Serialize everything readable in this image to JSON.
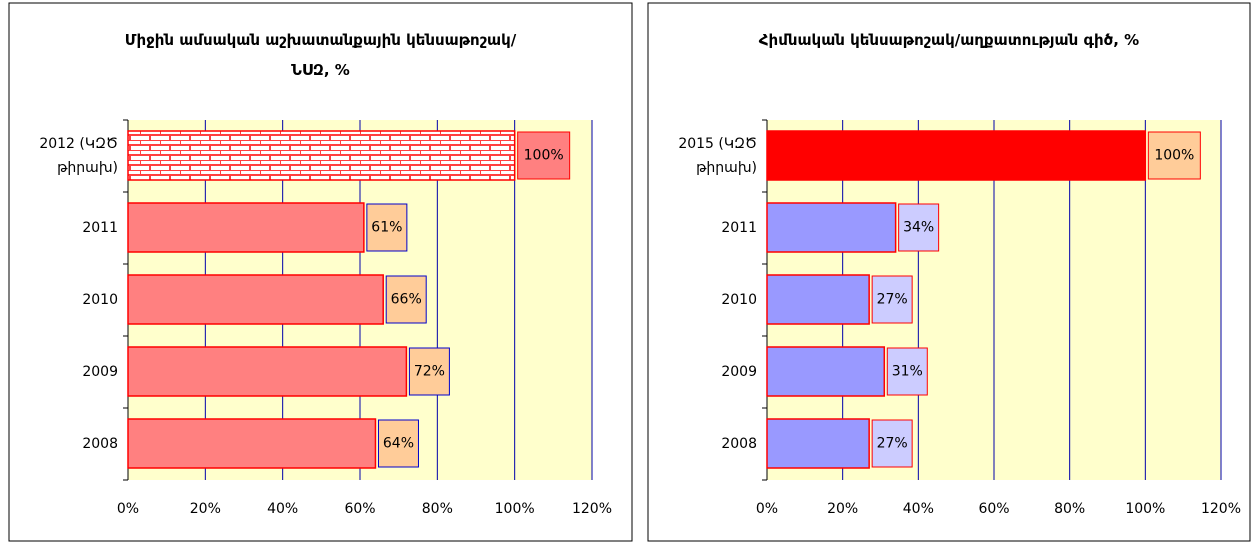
{
  "chart_data": [
    {
      "type": "bar",
      "orientation": "horizontal",
      "title": "Միջին ամսական աշխատանքային կենսաթոշակ/ՆՍԶ, %",
      "categories": [
        "2012 (ԿԶԾ թիրախ)",
        "2011",
        "2010",
        "2009",
        "2008"
      ],
      "values": [
        100,
        61,
        66,
        72,
        64
      ],
      "value_labels": [
        "100%",
        "61%",
        "66%",
        "72%",
        "64%"
      ],
      "colors": [
        "#ff8080",
        "#ff8080",
        "#ff8080",
        "#ff8080",
        "#ff8080"
      ],
      "bar_fill_patterns": [
        "bricks",
        "none",
        "none",
        "none",
        "none"
      ],
      "label_colors": [
        "#ff8080",
        "#ffcc99",
        "#ffcc99",
        "#ffcc99",
        "#ffcc99"
      ],
      "label_border_colors": [
        "#ff0000",
        "#0000cc",
        "#0000cc",
        "#0000cc",
        "#0000cc"
      ],
      "xlim": [
        0,
        120
      ],
      "xticks": [
        {
          "value": 0,
          "label": "0%"
        },
        {
          "value": 20,
          "label": "20%"
        },
        {
          "value": 40,
          "label": "40%"
        },
        {
          "value": 60,
          "label": "60%"
        },
        {
          "value": 80,
          "label": "80%"
        },
        {
          "value": 100,
          "label": "100%"
        },
        {
          "value": 120,
          "label": "120%"
        }
      ],
      "grid": true
    },
    {
      "type": "bar",
      "orientation": "horizontal",
      "title": "Հիմնական կենսաթոշակ/աղքատության գիծ, %",
      "categories": [
        "2015 (ԿԶԾ թիրախ)",
        "2011",
        "2010",
        "2009",
        "2008"
      ],
      "values": [
        100,
        34,
        27,
        31,
        27
      ],
      "value_labels": [
        "100%",
        "34%",
        "27%",
        "31%",
        "27%"
      ],
      "colors": [
        "#ff0000",
        "#9999ff",
        "#9999ff",
        "#9999ff",
        "#9999ff"
      ],
      "bar_fill_patterns": [
        "none",
        "none",
        "none",
        "none",
        "none"
      ],
      "label_colors": [
        "#ffcc99",
        "#ccccff",
        "#ccccff",
        "#ccccff",
        "#ccccff"
      ],
      "label_border_colors": [
        "#ff0000",
        "#ff0000",
        "#ff0000",
        "#ff0000",
        "#ff0000"
      ],
      "xlim": [
        0,
        120
      ],
      "xticks": [
        {
          "value": 0,
          "label": "0%"
        },
        {
          "value": 20,
          "label": "20%"
        },
        {
          "value": 40,
          "label": "40%"
        },
        {
          "value": 60,
          "label": "60%"
        },
        {
          "value": 80,
          "label": "80%"
        },
        {
          "value": 100,
          "label": "100%"
        },
        {
          "value": 120,
          "label": "120%"
        }
      ],
      "grid": true
    }
  ]
}
